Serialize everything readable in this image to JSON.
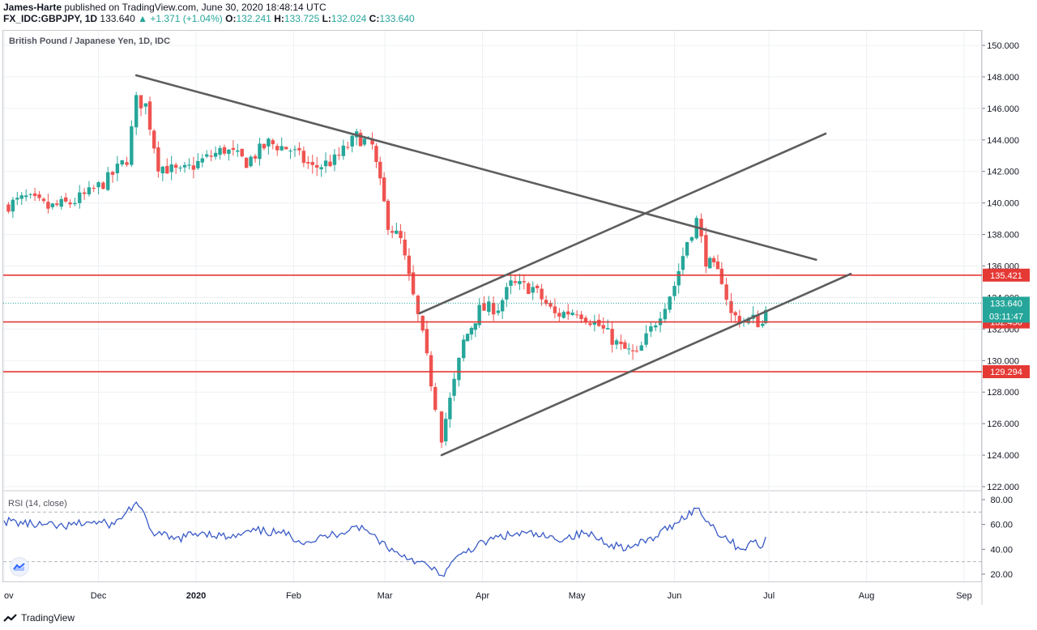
{
  "header": {
    "author": "James-Harte",
    "published_text": "published on TradingView.com, June 30, 2020 18:48:14 UTC",
    "symbol": "FX_IDC:GBPJPY, 1D",
    "last": "133.640",
    "change": "+1.371 (+1.04%)",
    "o_label": "O:",
    "o_value": "132.241",
    "h_label": "H:",
    "h_value": "133.725",
    "l_label": "L:",
    "l_value": "132.024",
    "c_label": "C:",
    "c_value": "133.640"
  },
  "legend": {
    "main": "British Pound / Japanese Yen, 1D, IDC",
    "rsi": "RSI (14, close)"
  },
  "footer": {
    "brand": "TradingView"
  },
  "colors": {
    "up": "#26a69a",
    "down": "#ef5350",
    "level": "#e53935",
    "trendline": "#5d5d5d",
    "rsi": "#3a5bc7",
    "grid": "#eef0f3"
  },
  "chart_data": {
    "type": "candlestick",
    "title": "British Pound / Japanese Yen, 1D, IDC",
    "ylim": [
      121.5,
      151
    ],
    "y_ticks": [
      "150.000",
      "148.000",
      "146.000",
      "144.000",
      "142.000",
      "140.000",
      "138.000",
      "136.000",
      "134.000",
      "132.000",
      "130.000",
      "128.000",
      "126.000",
      "124.000",
      "122.000"
    ],
    "x_ticks": [
      {
        "label": "ov",
        "date": "2019-11-01"
      },
      {
        "label": "Dec",
        "date": "2019-12-01"
      },
      {
        "label": "2020",
        "date": "2020-01-01"
      },
      {
        "label": "Feb",
        "date": "2020-02-01"
      },
      {
        "label": "Mar",
        "date": "2020-03-01"
      },
      {
        "label": "Apr",
        "date": "2020-04-01"
      },
      {
        "label": "May",
        "date": "2020-05-01"
      },
      {
        "label": "Jun",
        "date": "2020-06-01"
      },
      {
        "label": "Jul",
        "date": "2020-07-01"
      },
      {
        "label": "Aug",
        "date": "2020-08-01"
      },
      {
        "label": "Sep",
        "date": "2020-09-01"
      }
    ],
    "close_path": [
      [
        "2019-11-01",
        139.8
      ],
      [
        "2019-11-08",
        140.3
      ],
      [
        "2019-11-15",
        139.7
      ],
      [
        "2019-11-22",
        140.0
      ],
      [
        "2019-11-28",
        140.6
      ],
      [
        "2019-12-04",
        141.5
      ],
      [
        "2019-12-10",
        142.8
      ],
      [
        "2019-12-13",
        146.5
      ],
      [
        "2019-12-16",
        146.2
      ],
      [
        "2019-12-20",
        142.4
      ],
      [
        "2019-12-27",
        141.9
      ],
      [
        "2020-01-03",
        142.7
      ],
      [
        "2020-01-10",
        143.4
      ],
      [
        "2020-01-17",
        142.6
      ],
      [
        "2020-01-24",
        143.8
      ],
      [
        "2020-01-31",
        143.4
      ],
      [
        "2020-02-07",
        142.2
      ],
      [
        "2020-02-14",
        142.7
      ],
      [
        "2020-02-21",
        144.2
      ],
      [
        "2020-02-26",
        143.6
      ],
      [
        "2020-03-02",
        138.7
      ],
      [
        "2020-03-06",
        137.6
      ],
      [
        "2020-03-10",
        134.0
      ],
      [
        "2020-03-13",
        131.5
      ],
      [
        "2020-03-17",
        127.2
      ],
      [
        "2020-03-19",
        125.2
      ],
      [
        "2020-03-23",
        128.6
      ],
      [
        "2020-03-26",
        131.2
      ],
      [
        "2020-03-31",
        133.2
      ],
      [
        "2020-04-06",
        133.4
      ],
      [
        "2020-04-10",
        134.8
      ],
      [
        "2020-04-17",
        134.6
      ],
      [
        "2020-04-24",
        132.9
      ],
      [
        "2020-05-01",
        133.2
      ],
      [
        "2020-05-08",
        132.2
      ],
      [
        "2020-05-15",
        130.8
      ],
      [
        "2020-05-20",
        130.3
      ],
      [
        "2020-05-26",
        132.5
      ],
      [
        "2020-06-01",
        134.8
      ],
      [
        "2020-06-05",
        137.6
      ],
      [
        "2020-06-08",
        138.9
      ],
      [
        "2020-06-11",
        136.4
      ],
      [
        "2020-06-16",
        135.2
      ],
      [
        "2020-06-19",
        132.9
      ],
      [
        "2020-06-23",
        132.5
      ],
      [
        "2020-06-26",
        132.6
      ],
      [
        "2020-06-29",
        132.3
      ],
      [
        "2020-06-30",
        133.6
      ]
    ],
    "price_levels": [
      {
        "value": 135.421,
        "label": "135.421",
        "kind": "horizontal-line"
      },
      {
        "value": 132.45,
        "label": "132.450",
        "kind": "horizontal-line"
      },
      {
        "value": 129.294,
        "label": "129.294",
        "kind": "horizontal-line"
      }
    ],
    "last_price": {
      "value": 133.64,
      "label": "133.640",
      "countdown": "03:11:47"
    },
    "trendlines": [
      {
        "name": "descending-resistance",
        "from": [
          "2019-12-13",
          148.1
        ],
        "to": [
          "2020-07-16",
          136.4
        ]
      },
      {
        "name": "upper-channel",
        "from": [
          "2020-03-12",
          133.0
        ],
        "to": [
          "2020-07-19",
          144.4
        ]
      },
      {
        "name": "lower-channel",
        "from": [
          "2020-03-19",
          124.0
        ],
        "to": [
          "2020-07-27",
          135.5
        ]
      }
    ],
    "rsi": {
      "label": "RSI (14, close)",
      "ylim": [
        13,
        87
      ],
      "y_ticks": [
        "80.00",
        "60.00",
        "40.00",
        "20.00"
      ],
      "bands": [
        70,
        30
      ],
      "path": [
        [
          "2019-11-01",
          63
        ],
        [
          "2019-11-10",
          60
        ],
        [
          "2019-11-20",
          58
        ],
        [
          "2019-11-28",
          62
        ],
        [
          "2019-12-06",
          60
        ],
        [
          "2019-12-13",
          78
        ],
        [
          "2019-12-18",
          54
        ],
        [
          "2019-12-25",
          48
        ],
        [
          "2020-01-03",
          54
        ],
        [
          "2020-01-12",
          49
        ],
        [
          "2020-01-20",
          55
        ],
        [
          "2020-01-28",
          53
        ],
        [
          "2020-02-05",
          46
        ],
        [
          "2020-02-14",
          52
        ],
        [
          "2020-02-21",
          59
        ],
        [
          "2020-02-26",
          52
        ],
        [
          "2020-03-04",
          38
        ],
        [
          "2020-03-12",
          30
        ],
        [
          "2020-03-19",
          19
        ],
        [
          "2020-03-26",
          38
        ],
        [
          "2020-04-06",
          50
        ],
        [
          "2020-04-15",
          53
        ],
        [
          "2020-04-24",
          48
        ],
        [
          "2020-05-04",
          53
        ],
        [
          "2020-05-12",
          44
        ],
        [
          "2020-05-18",
          41
        ],
        [
          "2020-05-26",
          50
        ],
        [
          "2020-06-01",
          61
        ],
        [
          "2020-06-08",
          73
        ],
        [
          "2020-06-14",
          56
        ],
        [
          "2020-06-22",
          40
        ],
        [
          "2020-06-26",
          46
        ],
        [
          "2020-06-29",
          42
        ],
        [
          "2020-06-30",
          50
        ]
      ]
    }
  }
}
